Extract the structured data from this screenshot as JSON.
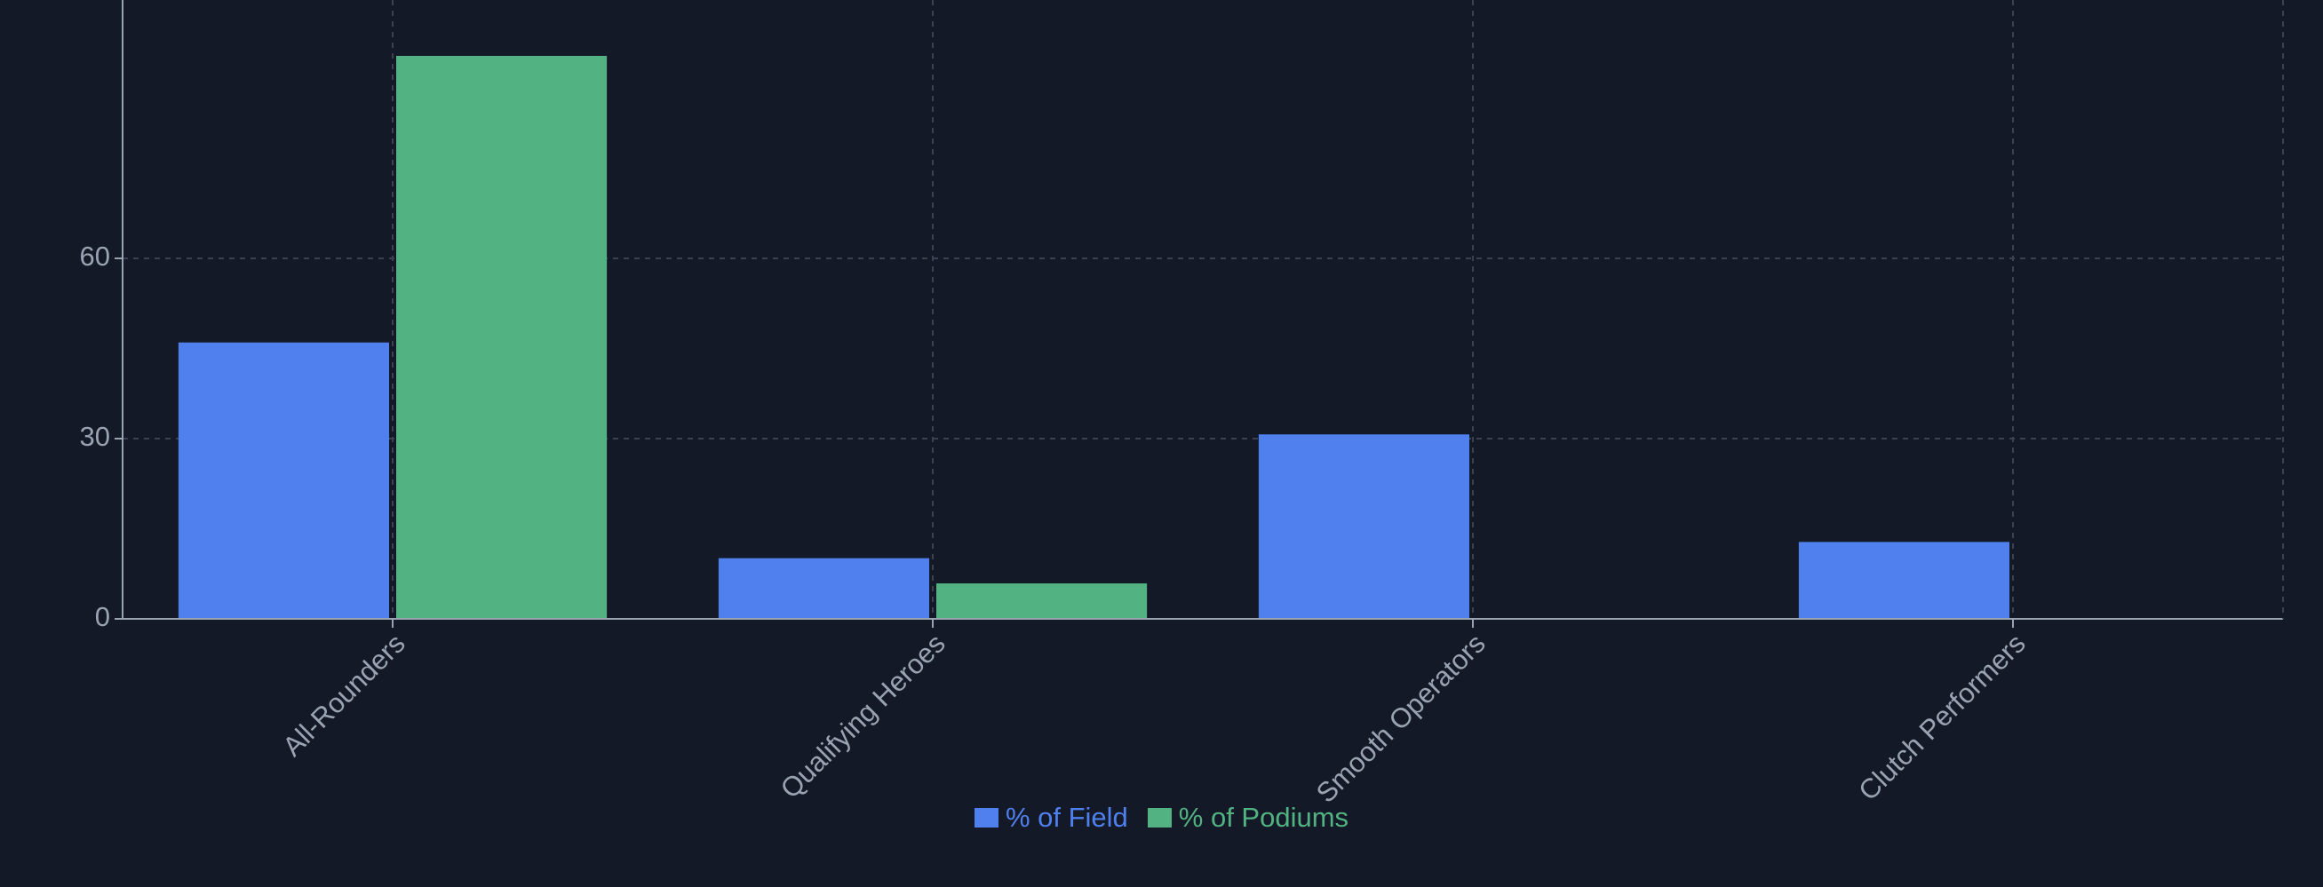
{
  "chart_data": {
    "type": "bar",
    "categories": [
      "All-Rounders",
      "Qualifying Heroes",
      "Smooth Operators",
      "Clutch Performers"
    ],
    "series": [
      {
        "name": "% of Field",
        "color": "#4f80ee",
        "values": [
          46,
          10.1,
          30.7,
          12.8
        ]
      },
      {
        "name": "% of Podiums",
        "color": "#52b281",
        "values": [
          93.7,
          5.9,
          0,
          0
        ]
      }
    ],
    "ylim": [
      0,
      103
    ],
    "yticks": [
      0,
      30,
      60
    ],
    "grid": true
  }
}
